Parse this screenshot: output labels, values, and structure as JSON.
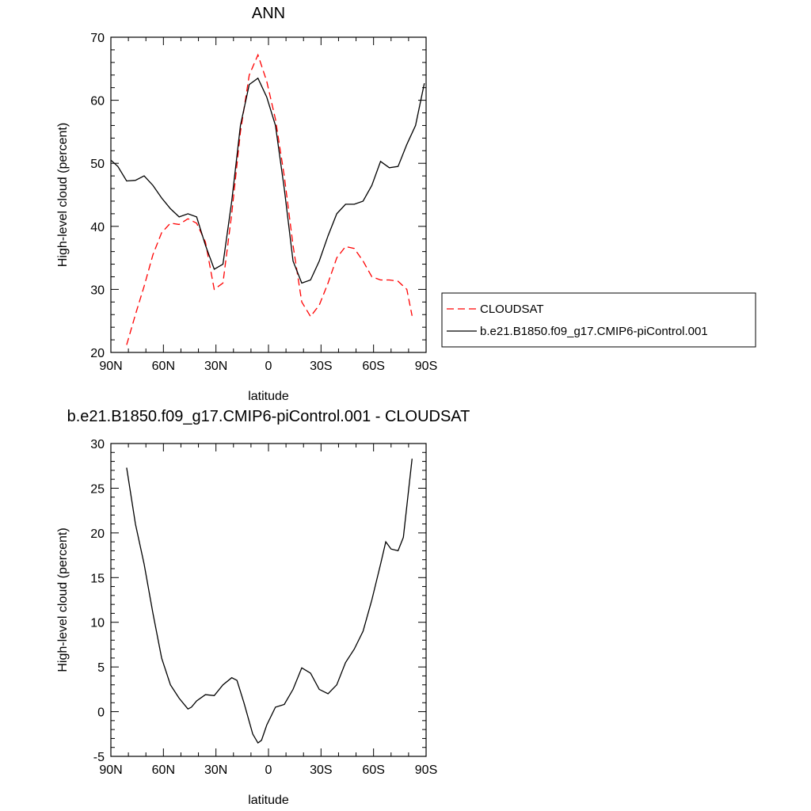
{
  "chart_data": [
    {
      "type": "line",
      "title": "ANN",
      "xlabel": "latitude",
      "ylabel": "High-level cloud (percent)",
      "xlim": [
        90,
        -90
      ],
      "ylim": [
        20,
        70
      ],
      "x_ticks": [
        90,
        60,
        30,
        0,
        -30,
        -60,
        -90
      ],
      "x_tick_labels": [
        "90N",
        "60N",
        "30N",
        "0",
        "30S",
        "60S",
        "90S"
      ],
      "y_ticks": [
        20,
        30,
        40,
        50,
        60,
        70
      ],
      "y_tick_labels": [
        "20",
        "30",
        "40",
        "50",
        "60",
        "70"
      ],
      "grid": false,
      "legend_position": "right",
      "series": [
        {
          "name": "CLOUDSAT",
          "color": "#ff0000",
          "dash": true,
          "x": [
            81,
            76,
            71,
            66,
            61,
            56,
            51,
            46,
            41,
            36,
            31,
            26,
            21,
            16,
            11,
            6,
            1,
            -4,
            -9,
            -14,
            -19,
            -24,
            -29,
            -34,
            -39,
            -44,
            -49,
            -54,
            -59,
            -64,
            -69,
            -74,
            -79,
            -82
          ],
          "y": [
            21.2,
            26.0,
            30.5,
            35.5,
            39.0,
            40.5,
            40.3,
            41.2,
            40.5,
            37.5,
            30.0,
            31.0,
            42.0,
            55.0,
            64.0,
            67.2,
            63.0,
            57.0,
            48.0,
            37.0,
            28.0,
            25.7,
            27.5,
            31.0,
            35.0,
            36.8,
            36.5,
            34.5,
            32.0,
            31.5,
            31.5,
            31.3,
            30.0,
            25.8
          ]
        },
        {
          "name": "b.e21.B1850.f09_g17.CMIP6-piControl.001",
          "color": "#000000",
          "dash": false,
          "x": [
            90,
            86,
            81,
            76,
            71,
            66,
            61,
            56,
            51,
            46,
            41,
            36,
            31,
            26,
            21,
            16,
            11,
            6,
            1,
            -4,
            -9,
            -14,
            -19,
            -24,
            -29,
            -34,
            -39,
            -44,
            -49,
            -54,
            -59,
            -64,
            -69,
            -74,
            -79,
            -84,
            -89
          ],
          "y": [
            50.5,
            49.5,
            47.2,
            47.3,
            48.0,
            46.5,
            44.5,
            42.8,
            41.5,
            42.0,
            41.5,
            37.0,
            33.2,
            34.0,
            44.0,
            56.0,
            62.5,
            63.5,
            60.5,
            56.0,
            46.0,
            34.5,
            31.0,
            31.5,
            34.5,
            38.5,
            42.0,
            43.5,
            43.5,
            44.0,
            46.5,
            50.3,
            49.3,
            49.5,
            53.0,
            56.0,
            62.7
          ]
        }
      ]
    },
    {
      "type": "line",
      "title": "b.e21.B1850.f09_g17.CMIP6-piControl.001 - CLOUDSAT",
      "xlabel": "latitude",
      "ylabel": "High-level cloud (percent)",
      "xlim": [
        90,
        -90
      ],
      "ylim": [
        -5,
        30
      ],
      "x_ticks": [
        90,
        60,
        30,
        0,
        -30,
        -60,
        -90
      ],
      "x_tick_labels": [
        "90N",
        "60N",
        "30N",
        "0",
        "30S",
        "60S",
        "90S"
      ],
      "y_ticks": [
        -5,
        0,
        5,
        10,
        15,
        20,
        25,
        30
      ],
      "y_tick_labels": [
        "-5",
        "0",
        "5",
        "10",
        "15",
        "20",
        "25",
        "30"
      ],
      "grid": false,
      "series": [
        {
          "color": "#000000",
          "dash": false,
          "x": [
            81,
            76,
            71,
            66,
            61,
            56,
            51,
            46,
            44,
            41,
            36,
            31,
            26,
            21,
            18,
            14,
            9,
            6,
            4,
            1,
            -4,
            -9,
            -14,
            -19,
            -24,
            -29,
            -34,
            -39,
            -44,
            -49,
            -54,
            -59,
            -64,
            -67,
            -70,
            -74,
            -77,
            -82
          ],
          "y": [
            27.3,
            21.0,
            16.5,
            11.0,
            6.0,
            3.0,
            1.5,
            0.3,
            0.5,
            1.2,
            1.9,
            1.8,
            3.0,
            3.8,
            3.5,
            1.0,
            -2.5,
            -3.5,
            -3.2,
            -1.5,
            0.5,
            0.8,
            2.5,
            4.9,
            4.3,
            2.5,
            2.0,
            3.0,
            5.5,
            7.0,
            9.0,
            12.5,
            16.5,
            19.0,
            18.2,
            18.0,
            19.5,
            28.3
          ]
        }
      ]
    }
  ]
}
